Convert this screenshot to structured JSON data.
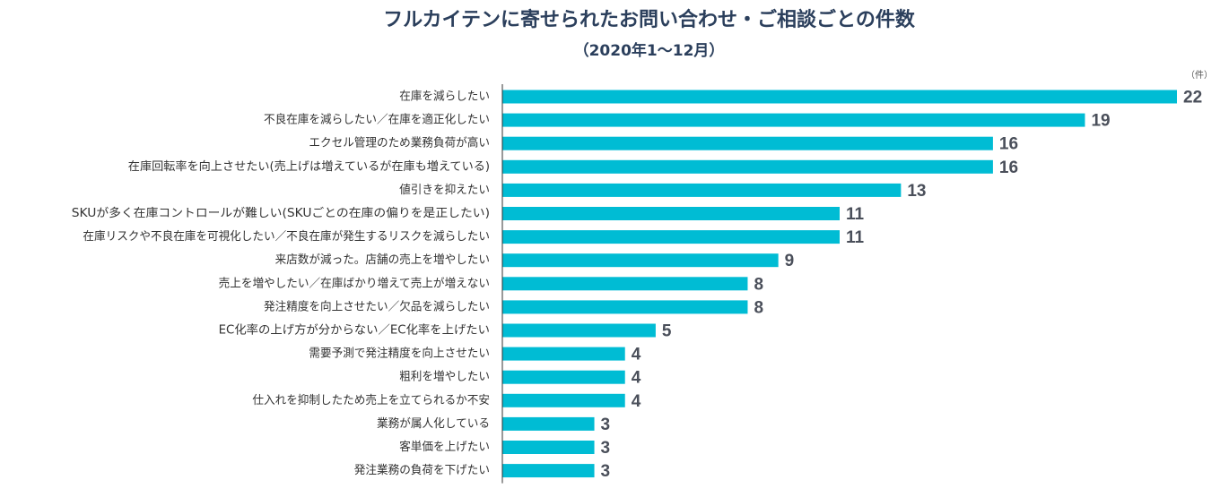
{
  "title": "フルカイテンに寄せられたお問い合わせ・ご相談ごとの件数",
  "subtitle": "（2020年1〜12月）",
  "unit": "（件）",
  "colors": {
    "bar": "#00bcd4",
    "axis": "#333333",
    "title": "#2b3f5c",
    "value_label": "#4a4f5a"
  },
  "chart_data": {
    "type": "bar",
    "orientation": "horizontal",
    "title": "フルカイテンに寄せられたお問い合わせ・ご相談ごとの件数",
    "subtitle": "（2020年1〜12月）",
    "unit": "（件）",
    "grid": false,
    "categories": [
      "在庫を減らしたい",
      "不良在庫を減らしたい／在庫を適正化したい",
      "エクセル管理のため業務負荷が高い",
      "在庫回転率を向上させたい(売上げは増えているが在庫も増えている)",
      "値引きを抑えたい",
      "SKUが多く在庫コントロールが難しい(SKUごとの在庫の偏りを是正したい)",
      "在庫リスクや不良在庫を可視化したい／不良在庫が発生するリスクを減らしたい",
      "来店数が減った。店舗の売上を増やしたい",
      "売上を増やしたい／在庫ばかり増えて売上が増えない",
      "発注精度を向上させたい／欠品を減らしたい",
      "EC化率の上げ方が分からない／EC化率を上げたい",
      "需要予測で発注精度を向上させたい",
      "粗利を増やしたい",
      "仕入れを抑制したため売上を立てられるか不安",
      "業務が属人化している",
      "客単価を上げたい",
      "発注業務の負荷を下げたい"
    ],
    "values": [
      22,
      19,
      16,
      16,
      13,
      11,
      11,
      9,
      8,
      8,
      5,
      4,
      4,
      4,
      3,
      3,
      3
    ],
    "xlim": [
      0,
      22
    ]
  }
}
